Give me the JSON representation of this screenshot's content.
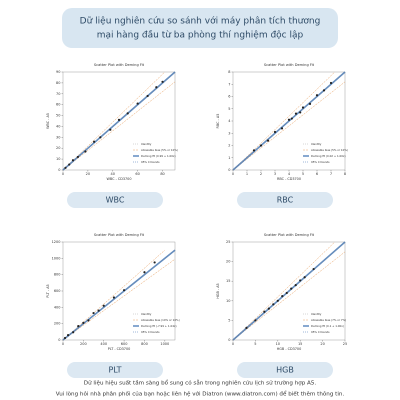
{
  "header": {
    "title_line1": "Dữ liệu nghiên cứu so sánh với máy phân tích thương",
    "title_line2": "mại hàng đầu từ ba phòng thí nghiệm độc lập"
  },
  "footer": {
    "line1": "Dữ liệu hiệu suất tầm sàng bổ sung có sẵn trong nghiên cứu lịch sử trường hợp A5.",
    "line2": "Vui lòng hỏi nhà phân phối của bạn hoặc liên hệ với Diatron (www.diatron.com) để biết thêm thông tin."
  },
  "chart_data": [
    {
      "type": "scatter",
      "title": "Scatter Plot with Deming Fit",
      "caption": "WBC",
      "x_label": "WBC - CD3700",
      "y_label": "WBC - A5",
      "legend": [
        "Identity",
        "Allowable bias (5% or 10%)",
        "Deming fit (0.99 + 1.00x)",
        "95% CI bands"
      ],
      "x": [
        2,
        5,
        8,
        12,
        18,
        25,
        30,
        38,
        45,
        52,
        60,
        68,
        75,
        80
      ],
      "values": [
        2,
        5,
        9,
        12,
        17,
        26,
        30,
        37,
        46,
        52,
        61,
        68,
        76,
        81
      ],
      "color": "#222222",
      "xlim": [
        0,
        90
      ],
      "ylim": [
        0,
        90
      ],
      "xticks": [
        0,
        20,
        40,
        60,
        80
      ],
      "yticks": [
        0,
        10,
        20,
        30,
        40,
        50,
        60,
        70,
        80,
        90
      ]
    },
    {
      "type": "scatter",
      "title": "Scatter Plot with Deming Fit",
      "caption": "RBC",
      "x_label": "RBC - CD3700",
      "y_label": "RBC - A5",
      "legend": [
        "Identity",
        "Allowable bias (5% or 10%)",
        "Deming fit (0.02 + 1.00x)",
        "95% CI bands"
      ],
      "x": [
        1.5,
        2,
        2.5,
        3,
        3.5,
        4,
        4.2,
        4.5,
        4.8,
        5,
        5.5,
        6,
        6.5,
        7
      ],
      "values": [
        1.6,
        2,
        2.4,
        3.1,
        3.4,
        4.1,
        4.2,
        4.6,
        4.7,
        5.1,
        5.4,
        6.1,
        6.5,
        7.1
      ],
      "color": "#222222",
      "xlim": [
        0,
        8
      ],
      "ylim": [
        0,
        8
      ],
      "xticks": [
        0,
        1,
        2,
        3,
        4,
        5,
        6,
        7,
        8
      ],
      "yticks": [
        0,
        1,
        2,
        3,
        4,
        5,
        6,
        7,
        8
      ]
    },
    {
      "type": "scatter",
      "title": "Scatter Plot with Deming Fit",
      "caption": "PLT",
      "x_label": "PLT - CD3700",
      "y_label": "PLT - A5",
      "legend": [
        "Identity",
        "Allowable bias (10% or 10%)",
        "Deming fit (-7.99 + 1.04x)",
        "95% CI bands"
      ],
      "x": [
        20,
        50,
        100,
        150,
        200,
        250,
        300,
        350,
        400,
        500,
        600,
        800,
        900
      ],
      "values": [
        25,
        60,
        95,
        170,
        210,
        240,
        330,
        360,
        420,
        520,
        610,
        830,
        950
      ],
      "color": "#222222",
      "xlim": [
        0,
        1100
      ],
      "ylim": [
        0,
        1200
      ],
      "xticks": [
        0,
        200,
        400,
        600,
        800,
        1000
      ],
      "yticks": [
        0,
        200,
        400,
        600,
        800,
        1000,
        1200
      ]
    },
    {
      "type": "scatter",
      "title": "Scatter Plot with Deming Fit",
      "caption": "HGB",
      "x_label": "HGB - CD3700",
      "y_label": "HGB - A5",
      "legend": [
        "Identity",
        "Allowable bias (7% or 7%)",
        "Deming fit (0.1 + 1.00x)",
        "95% CI bands"
      ],
      "x": [
        3,
        5,
        7,
        8,
        9,
        10,
        11,
        12,
        13,
        14,
        15,
        16,
        18
      ],
      "values": [
        3.1,
        5,
        7.2,
        8,
        9.1,
        10,
        11.2,
        12,
        13.1,
        14,
        15.2,
        16,
        18.1
      ],
      "color": "#222222",
      "xlim": [
        0,
        25
      ],
      "ylim": [
        0,
        25
      ],
      "xticks": [
        0,
        5,
        10,
        15,
        20,
        25
      ],
      "yticks": [
        0,
        5,
        10,
        15,
        20,
        25
      ]
    }
  ]
}
